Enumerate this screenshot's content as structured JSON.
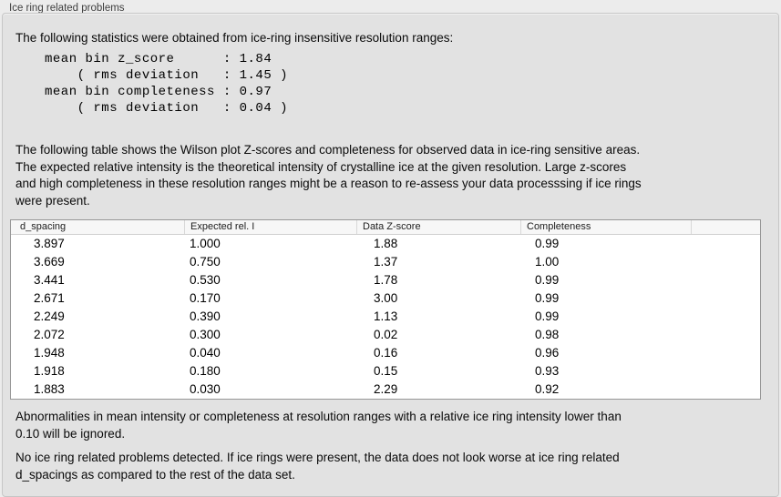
{
  "panel": {
    "title": "Ice ring related problems"
  },
  "intro": {
    "text": "The following statistics were obtained from ice-ring insensitive resolution ranges:",
    "stats_block": "mean bin z_score      : 1.84\n    ( rms deviation   : 1.45 )\nmean bin completeness : 0.97\n    ( rms deviation   : 0.04 )",
    "stats": {
      "mean_bin_z_score": "1.84",
      "z_score_rms_deviation": "1.45",
      "mean_bin_completeness": "0.97",
      "completeness_rms_deviation": "0.04"
    }
  },
  "description": {
    "text": "The following table shows the Wilson plot Z-scores and completeness for observed data in ice-ring sensitive areas.\nThe expected relative intensity is the theoretical intensity of crystalline ice at the given resolution. Large z-scores\nand high completeness in these resolution ranges might be a reason to re-assess your data processsing if ice rings\nwere present."
  },
  "table": {
    "columns": [
      "d_spacing",
      "Expected rel. I",
      "Data Z-score",
      "Completeness",
      ""
    ],
    "rows": [
      [
        "3.897",
        "1.000",
        "1.88",
        "0.99"
      ],
      [
        "3.669",
        "0.750",
        "1.37",
        "1.00"
      ],
      [
        "3.441",
        "0.530",
        "1.78",
        "0.99"
      ],
      [
        "2.671",
        "0.170",
        "3.00",
        "0.99"
      ],
      [
        "2.249",
        "0.390",
        "1.13",
        "0.99"
      ],
      [
        "2.072",
        "0.300",
        "0.02",
        "0.98"
      ],
      [
        "1.948",
        "0.040",
        "0.16",
        "0.96"
      ],
      [
        "1.918",
        "0.180",
        "0.15",
        "0.93"
      ],
      [
        "1.883",
        "0.030",
        "2.29",
        "0.92"
      ]
    ]
  },
  "notes": {
    "ignore_note": "Abnormalities in mean intensity or completeness at resolution ranges with a relative ice ring intensity lower than\n0.10 will be ignored.",
    "conclusion": "No ice ring related problems detected. If ice rings were present, the data does not look worse at ice ring related\nd_spacings as compared to the rest of the data set."
  }
}
